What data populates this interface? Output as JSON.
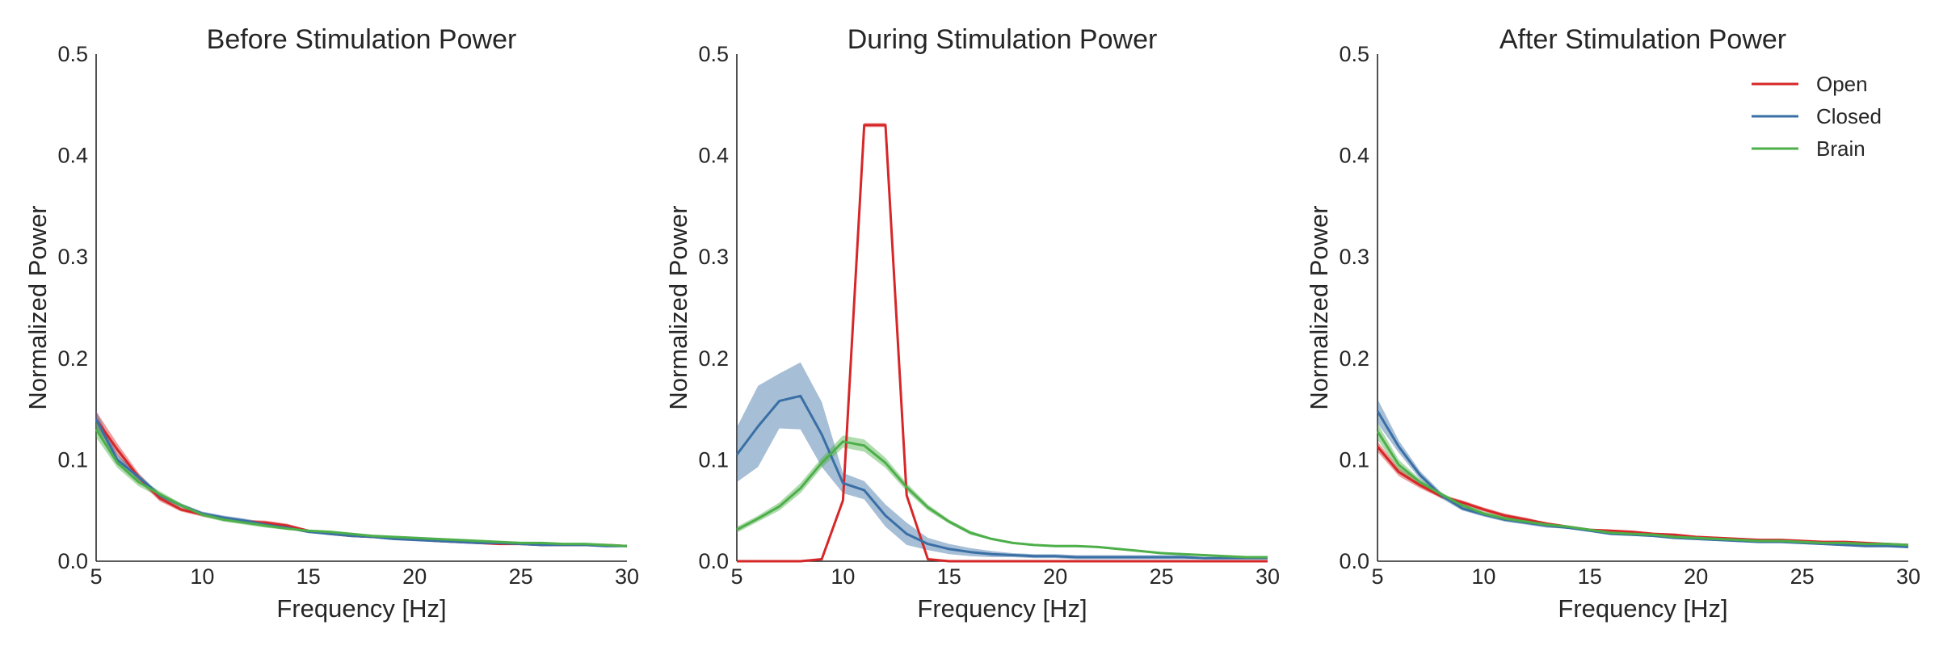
{
  "chart_data": [
    {
      "type": "line",
      "title": "Before Stimulation Power",
      "xlabel": "Frequency [Hz]",
      "ylabel": "Normalized Power",
      "xlim": [
        5,
        30
      ],
      "ylim": [
        0,
        0.5
      ],
      "xticks": [
        "5",
        "10",
        "15",
        "20",
        "25",
        "30"
      ],
      "yticks": [
        "0.0",
        "0.1",
        "0.2",
        "0.3",
        "0.4",
        "0.5"
      ],
      "grid": false,
      "legend": false,
      "x": [
        5,
        6,
        7,
        8,
        9,
        10,
        11,
        12,
        13,
        14,
        15,
        16,
        17,
        18,
        19,
        20,
        21,
        22,
        23,
        24,
        25,
        26,
        27,
        28,
        29,
        30
      ],
      "series": [
        {
          "name": "Open",
          "color": "#d62728",
          "values": [
            0.14,
            0.11,
            0.083,
            0.062,
            0.051,
            0.046,
            0.042,
            0.039,
            0.038,
            0.035,
            0.03,
            0.027,
            0.025,
            0.024,
            0.023,
            0.022,
            0.02,
            0.019,
            0.018,
            0.017,
            0.017,
            0.016,
            0.016,
            0.016,
            0.016,
            0.015
          ],
          "band": [
            0.008,
            0.006,
            0.004,
            0.003,
            0.002,
            0.002,
            0.002,
            0.002,
            0.002,
            0.002,
            0.001,
            0.001,
            0.001,
            0.001,
            0.001,
            0.001,
            0.001,
            0.001,
            0.001,
            0.001,
            0.001,
            0.001,
            0.001,
            0.001,
            0.001,
            0.001
          ]
        },
        {
          "name": "Closed",
          "color": "#3a6fa5",
          "values": [
            0.14,
            0.1,
            0.083,
            0.065,
            0.055,
            0.047,
            0.043,
            0.04,
            0.036,
            0.033,
            0.029,
            0.027,
            0.025,
            0.024,
            0.022,
            0.021,
            0.02,
            0.019,
            0.018,
            0.018,
            0.017,
            0.016,
            0.016,
            0.016,
            0.015,
            0.015
          ],
          "band": [
            0.008,
            0.005,
            0.003,
            0.002,
            0.002,
            0.002,
            0.002,
            0.002,
            0.002,
            0.001,
            0.001,
            0.001,
            0.001,
            0.001,
            0.001,
            0.001,
            0.001,
            0.001,
            0.001,
            0.001,
            0.001,
            0.001,
            0.001,
            0.001,
            0.001,
            0.001
          ]
        },
        {
          "name": "Brain",
          "color": "#4daf4a",
          "values": [
            0.13,
            0.097,
            0.078,
            0.066,
            0.055,
            0.046,
            0.041,
            0.038,
            0.035,
            0.032,
            0.03,
            0.029,
            0.027,
            0.025,
            0.024,
            0.023,
            0.022,
            0.021,
            0.02,
            0.019,
            0.018,
            0.018,
            0.017,
            0.017,
            0.016,
            0.015
          ],
          "band": [
            0.008,
            0.005,
            0.004,
            0.003,
            0.002,
            0.002,
            0.002,
            0.002,
            0.002,
            0.001,
            0.001,
            0.001,
            0.001,
            0.001,
            0.001,
            0.001,
            0.001,
            0.001,
            0.001,
            0.001,
            0.001,
            0.001,
            0.001,
            0.001,
            0.001,
            0.001
          ]
        }
      ]
    },
    {
      "type": "line",
      "title": "During Stimulation Power",
      "xlabel": "Frequency [Hz]",
      "ylabel": "Normalized Power",
      "xlim": [
        5,
        30
      ],
      "ylim": [
        0,
        0.5
      ],
      "xticks": [
        "5",
        "10",
        "15",
        "20",
        "25",
        "30"
      ],
      "yticks": [
        "0.0",
        "0.1",
        "0.2",
        "0.3",
        "0.4",
        "0.5"
      ],
      "grid": false,
      "legend": false,
      "x": [
        5,
        6,
        7,
        8,
        9,
        10,
        11,
        12,
        13,
        14,
        15,
        16,
        17,
        18,
        19,
        20,
        21,
        22,
        23,
        24,
        25,
        26,
        27,
        28,
        29,
        30
      ],
      "series": [
        {
          "name": "Open",
          "color": "#d62728",
          "values": [
            0.0,
            0.0,
            0.0,
            0.0,
            0.002,
            0.06,
            0.43,
            0.43,
            0.065,
            0.002,
            0.0,
            0.0,
            0.0,
            0.0,
            0.0,
            0.0,
            0.0,
            0.0,
            0.0,
            0.0,
            0.0,
            0.0,
            0.0,
            0.0,
            0.0,
            0.0
          ],
          "band": [
            0.001,
            0.001,
            0.001,
            0.001,
            0.001,
            0.003,
            0.002,
            0.002,
            0.003,
            0.001,
            0.0,
            0.0,
            0.0,
            0.0,
            0.0,
            0.0,
            0.0,
            0.0,
            0.0,
            0.0,
            0.0,
            0.0,
            0.0,
            0.0,
            0.0,
            0.0
          ]
        },
        {
          "name": "Closed",
          "color": "#3a6fa5",
          "values": [
            0.105,
            0.133,
            0.158,
            0.163,
            0.125,
            0.077,
            0.07,
            0.045,
            0.027,
            0.017,
            0.012,
            0.009,
            0.007,
            0.006,
            0.005,
            0.005,
            0.004,
            0.004,
            0.004,
            0.004,
            0.004,
            0.004,
            0.003,
            0.003,
            0.003,
            0.003
          ],
          "band": [
            0.027,
            0.04,
            0.027,
            0.033,
            0.032,
            0.01,
            0.009,
            0.011,
            0.011,
            0.006,
            0.005,
            0.004,
            0.003,
            0.002,
            0.002,
            0.002,
            0.002,
            0.002,
            0.002,
            0.002,
            0.002,
            0.002,
            0.001,
            0.001,
            0.001,
            0.001
          ]
        },
        {
          "name": "Brain",
          "color": "#4daf4a",
          "values": [
            0.031,
            0.042,
            0.054,
            0.072,
            0.097,
            0.118,
            0.114,
            0.097,
            0.073,
            0.053,
            0.039,
            0.028,
            0.022,
            0.018,
            0.016,
            0.015,
            0.015,
            0.014,
            0.012,
            0.01,
            0.008,
            0.007,
            0.006,
            0.005,
            0.004,
            0.004
          ],
          "band": [
            0.003,
            0.003,
            0.004,
            0.005,
            0.005,
            0.006,
            0.006,
            0.005,
            0.004,
            0.003,
            0.002,
            0.002,
            0.001,
            0.001,
            0.001,
            0.001,
            0.001,
            0.001,
            0.001,
            0.001,
            0.001,
            0.001,
            0.001,
            0.001,
            0.001,
            0.001
          ]
        }
      ]
    },
    {
      "type": "line",
      "title": "After Stimulation Power",
      "xlabel": "Frequency [Hz]",
      "ylabel": "Normalized Power",
      "xlim": [
        5,
        30
      ],
      "ylim": [
        0,
        0.5
      ],
      "xticks": [
        "5",
        "10",
        "15",
        "20",
        "25",
        "30"
      ],
      "yticks": [
        "0.0",
        "0.1",
        "0.2",
        "0.3",
        "0.4",
        "0.5"
      ],
      "grid": false,
      "legend": true,
      "legend_position": "top-right",
      "x": [
        5,
        6,
        7,
        8,
        9,
        10,
        11,
        12,
        13,
        14,
        15,
        16,
        17,
        18,
        19,
        20,
        21,
        22,
        23,
        24,
        25,
        26,
        27,
        28,
        29,
        30
      ],
      "series": [
        {
          "name": "Open",
          "color": "#d62728",
          "values": [
            0.113,
            0.088,
            0.075,
            0.064,
            0.058,
            0.051,
            0.045,
            0.041,
            0.037,
            0.034,
            0.031,
            0.03,
            0.029,
            0.027,
            0.026,
            0.024,
            0.023,
            0.022,
            0.021,
            0.021,
            0.02,
            0.019,
            0.019,
            0.018,
            0.017,
            0.016
          ],
          "band": [
            0.005,
            0.004,
            0.003,
            0.002,
            0.002,
            0.002,
            0.002,
            0.002,
            0.001,
            0.001,
            0.001,
            0.001,
            0.001,
            0.001,
            0.001,
            0.001,
            0.001,
            0.001,
            0.001,
            0.001,
            0.001,
            0.001,
            0.001,
            0.001,
            0.001,
            0.001
          ]
        },
        {
          "name": "Closed",
          "color": "#3a6fa5",
          "values": [
            0.148,
            0.113,
            0.085,
            0.065,
            0.052,
            0.046,
            0.041,
            0.038,
            0.035,
            0.033,
            0.03,
            0.027,
            0.026,
            0.025,
            0.023,
            0.022,
            0.021,
            0.02,
            0.019,
            0.019,
            0.018,
            0.017,
            0.016,
            0.015,
            0.015,
            0.014
          ],
          "band": [
            0.012,
            0.006,
            0.004,
            0.003,
            0.002,
            0.002,
            0.002,
            0.002,
            0.002,
            0.001,
            0.001,
            0.001,
            0.001,
            0.001,
            0.001,
            0.001,
            0.001,
            0.001,
            0.001,
            0.001,
            0.001,
            0.001,
            0.001,
            0.001,
            0.001,
            0.001
          ]
        },
        {
          "name": "Brain",
          "color": "#4daf4a",
          "values": [
            0.128,
            0.095,
            0.078,
            0.066,
            0.055,
            0.047,
            0.042,
            0.039,
            0.036,
            0.034,
            0.031,
            0.028,
            0.027,
            0.026,
            0.024,
            0.023,
            0.022,
            0.021,
            0.02,
            0.02,
            0.019,
            0.018,
            0.018,
            0.017,
            0.017,
            0.016
          ],
          "band": [
            0.008,
            0.005,
            0.003,
            0.002,
            0.002,
            0.002,
            0.002,
            0.002,
            0.002,
            0.001,
            0.001,
            0.001,
            0.001,
            0.001,
            0.001,
            0.001,
            0.001,
            0.001,
            0.001,
            0.001,
            0.001,
            0.001,
            0.001,
            0.001,
            0.001,
            0.001
          ]
        }
      ]
    }
  ]
}
